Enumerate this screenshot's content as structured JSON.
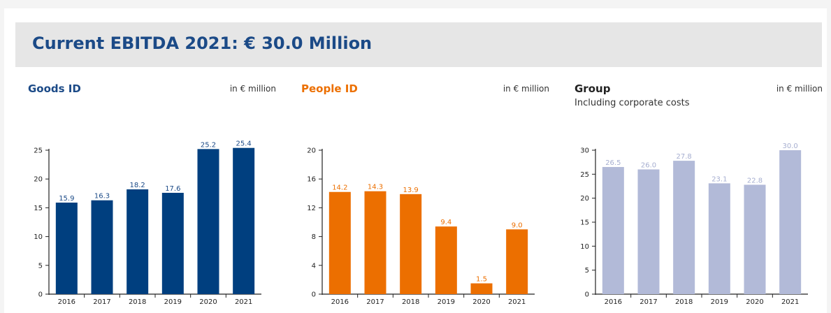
{
  "header": {
    "title": "Current EBITDA 2021: € 30.0 Million",
    "title_color": "#1b4a87"
  },
  "chart_data": [
    {
      "type": "bar",
      "title": "Goods ID",
      "subtitle": "",
      "unit": "in € million",
      "color": "#003f7f",
      "title_color": "#1b4a87",
      "label_color": "#1b4a87",
      "categories": [
        "2016",
        "2017",
        "2018",
        "2019",
        "2020",
        "2021"
      ],
      "values": [
        15.9,
        16.3,
        18.2,
        17.6,
        25.2,
        25.4
      ],
      "yticks": [
        0,
        5,
        10,
        15,
        20,
        25
      ],
      "ylim": [
        0,
        25
      ],
      "xlabel": "",
      "ylabel": ""
    },
    {
      "type": "bar",
      "title": "People ID",
      "subtitle": "",
      "unit": "in € million",
      "color": "#ec6f00",
      "title_color": "#ec6f00",
      "label_color": "#ec6f00",
      "categories": [
        "2016",
        "2017",
        "2018",
        "2019",
        "2020",
        "2021"
      ],
      "values": [
        14.2,
        14.3,
        13.9,
        9.4,
        1.5,
        9.0
      ],
      "yticks": [
        0,
        4,
        8,
        12,
        16,
        20
      ],
      "ylim": [
        0,
        20
      ],
      "xlabel": "",
      "ylabel": ""
    },
    {
      "type": "bar",
      "title": "Group",
      "subtitle": "Including corporate costs",
      "unit": "in € million",
      "color": "#b2bad8",
      "title_color": "#222222",
      "label_color": "#a6aed0",
      "categories": [
        "2016",
        "2017",
        "2018",
        "2019",
        "2020",
        "2021"
      ],
      "values": [
        26.5,
        26.0,
        27.8,
        23.1,
        22.8,
        30.0
      ],
      "yticks": [
        0,
        5,
        10,
        15,
        20,
        25,
        30
      ],
      "ylim": [
        0,
        30
      ],
      "xlabel": "",
      "ylabel": ""
    }
  ]
}
